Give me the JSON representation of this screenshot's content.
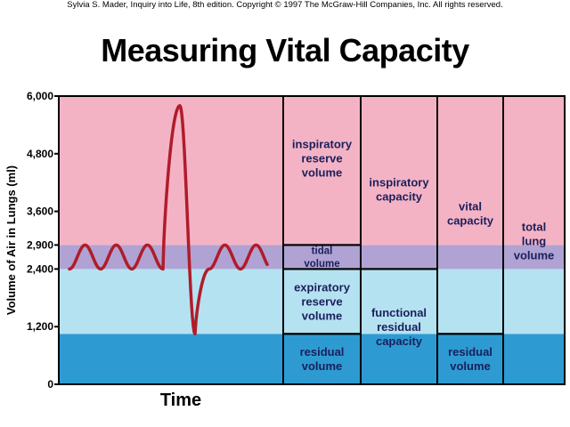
{
  "copyright": "Sylvia S. Mader, Inquiry into Life, 8th edition. Copyright © 1997 The McGraw-Hill Companies, Inc. All rights reserved.",
  "title": "Measuring Vital Capacity",
  "colors": {
    "pink": "#f4b3c5",
    "purple": "#b0a3d3",
    "light_blue": "#b5e2f1",
    "dark_blue": "#2d9bd2",
    "curve": "#b01c2a",
    "text": "#1a1f5c"
  },
  "chart_data": {
    "type": "diagram",
    "ylabel": "Volume of Air in Lungs (ml)",
    "xlabel": "Time",
    "ylim": [
      0,
      6000
    ],
    "y_ticks": [
      0,
      1200,
      2400,
      2900,
      3600,
      4800,
      6000
    ],
    "y_tick_labels": [
      "0",
      "1,200",
      "2,400",
      "2,900",
      "3,600",
      "4,800",
      "6,000"
    ],
    "bands": [
      {
        "name": "residual",
        "from": 0,
        "to": 1050,
        "color": "dark_blue"
      },
      {
        "name": "expiratory",
        "from": 1050,
        "to": 2400,
        "color": "light_blue"
      },
      {
        "name": "tidal",
        "from": 2400,
        "to": 2900,
        "color": "purple"
      },
      {
        "name": "inspiratory",
        "from": 2900,
        "to": 6000,
        "color": "pink"
      }
    ],
    "curve": {
      "baseline": 2400,
      "peak_tidal": 2900,
      "max_inspiration": 5800,
      "max_expiration": 1050
    },
    "columns": [
      {
        "segments": [
          {
            "label": [
              "inspiratory",
              "reserve",
              "volume"
            ],
            "from": 2900,
            "to": 6000
          },
          {
            "label": [
              "tidal",
              "volume"
            ],
            "from": 2400,
            "to": 2900
          },
          {
            "label": [
              "expiratory",
              "reserve",
              "volume"
            ],
            "from": 1050,
            "to": 2400
          },
          {
            "label": [
              "residual",
              "volume"
            ],
            "from": 0,
            "to": 1050
          }
        ]
      },
      {
        "segments": [
          {
            "label": [
              "inspiratory",
              "capacity"
            ],
            "from": 2400,
            "to": 6000
          },
          {
            "label": [
              "functional",
              "residual",
              "capacity"
            ],
            "from": 0,
            "to": 2400
          }
        ]
      },
      {
        "segments": [
          {
            "label": [
              "vital",
              "capacity"
            ],
            "from": 1050,
            "to": 6000
          },
          {
            "label": [
              "residual",
              "volume"
            ],
            "from": 0,
            "to": 1050
          }
        ]
      },
      {
        "segments": [
          {
            "label": [
              "total",
              "lung",
              "volume"
            ],
            "from": 0,
            "to": 6000
          }
        ]
      }
    ]
  }
}
